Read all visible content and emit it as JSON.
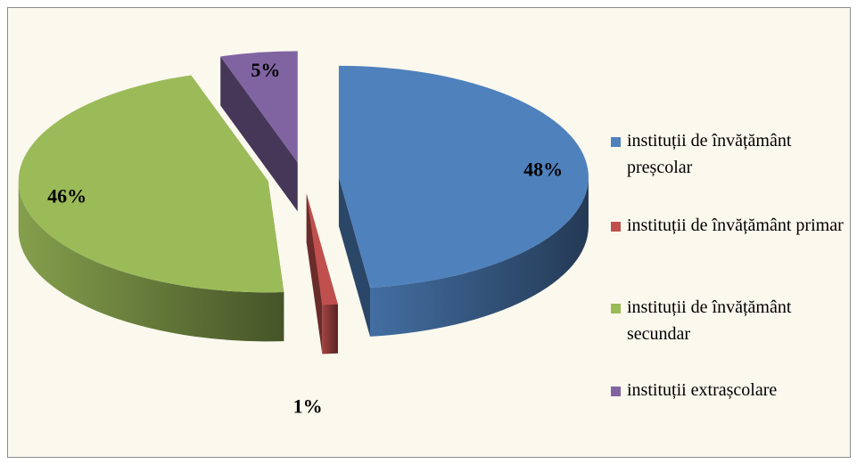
{
  "chart_data": {
    "type": "pie",
    "categories": [
      "instituții de învățământ preșcolar",
      "instituții de învățământ primar",
      "instituții de învățământ secundar",
      "instituții extrașcolare"
    ],
    "values": [
      48,
      1,
      46,
      5
    ],
    "value_labels": [
      "48%",
      "1%",
      "46%",
      "5%"
    ],
    "colors": [
      "#4f81bd",
      "#c0504d",
      "#9bbb59",
      "#8064a2"
    ],
    "legend": "right"
  }
}
